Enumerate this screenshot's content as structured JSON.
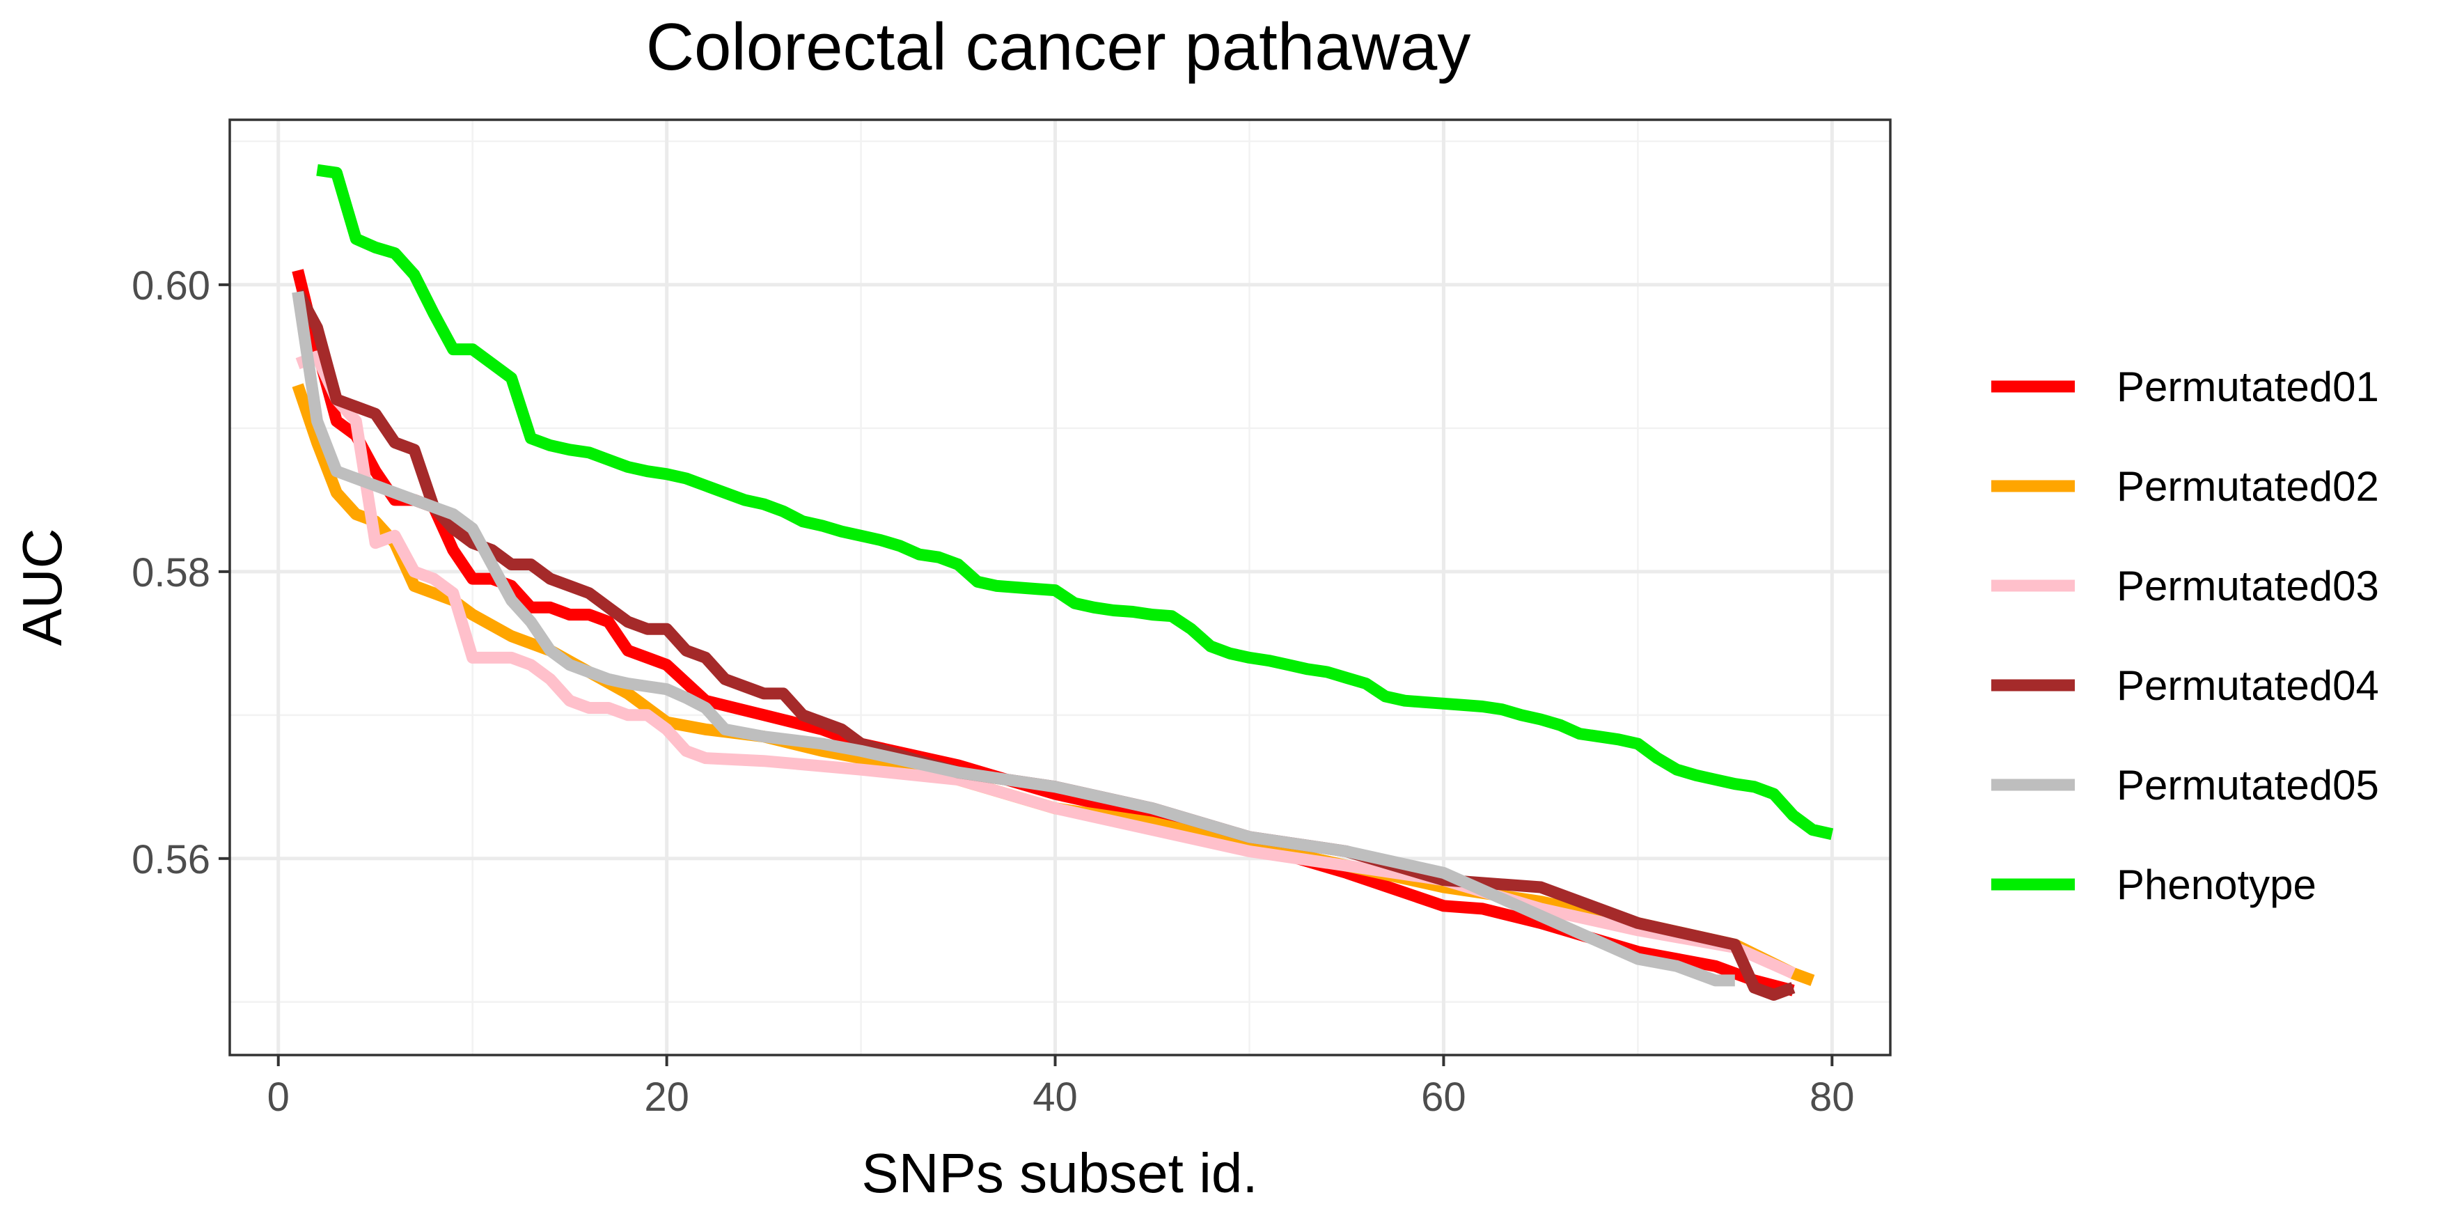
{
  "chart_data": {
    "type": "line",
    "title": "Colorectal cancer pathaway",
    "xlabel": "SNPs subset id.",
    "ylabel": "AUC",
    "xlim": [
      -2.5,
      83
    ],
    "ylim": [
      0.5463,
      0.6115
    ],
    "x_ticks": [
      0,
      20,
      40,
      60,
      80
    ],
    "x_tick_labels": [
      "0",
      "20",
      "40",
      "60",
      "80"
    ],
    "y_ticks": [
      0.56,
      0.58,
      0.6
    ],
    "y_tick_labels": [
      "0.56",
      "0.58",
      "0.60"
    ],
    "grid": true,
    "legend_position": "right",
    "series": [
      {
        "name": "Permutated01",
        "color": "#ff0000",
        "x": [
          1,
          2,
          3,
          4,
          5,
          6,
          7,
          8,
          9,
          10,
          11,
          12,
          13,
          14,
          15,
          16,
          17,
          18,
          19,
          20,
          22,
          25,
          28,
          30,
          35,
          40,
          45,
          50,
          55,
          60,
          62,
          65,
          70,
          74,
          76,
          78
        ],
        "y": [
          0.601,
          0.5955,
          0.5905,
          0.5895,
          0.587,
          0.585,
          0.585,
          0.5845,
          0.5815,
          0.5795,
          0.5795,
          0.579,
          0.5775,
          0.5775,
          0.577,
          0.577,
          0.5765,
          0.5745,
          0.574,
          0.5735,
          0.571,
          0.57,
          0.569,
          0.568,
          0.5665,
          0.5645,
          0.563,
          0.561,
          0.559,
          0.5567,
          0.5565,
          0.5555,
          0.5535,
          0.5525,
          0.5515,
          0.5508
        ]
      },
      {
        "name": "Permutated02",
        "color": "#ffa500",
        "x": [
          1,
          2,
          3,
          4,
          5,
          6,
          7,
          8,
          9,
          10,
          12,
          14,
          16,
          18,
          20,
          22,
          25,
          28,
          30,
          35,
          40,
          45,
          50,
          55,
          60,
          65,
          70,
          75,
          78,
          79
        ],
        "y": [
          0.593,
          0.589,
          0.5855,
          0.584,
          0.5835,
          0.582,
          0.579,
          0.5785,
          0.578,
          0.577,
          0.5755,
          0.5745,
          0.573,
          0.5715,
          0.5695,
          0.569,
          0.5685,
          0.5675,
          0.567,
          0.5655,
          0.5635,
          0.5625,
          0.561,
          0.5595,
          0.558,
          0.557,
          0.5555,
          0.554,
          0.552,
          0.5515
        ]
      },
      {
        "name": "Permutated03",
        "color": "#ffc0cb",
        "x": [
          1,
          2,
          3,
          4,
          5,
          6,
          7,
          8,
          9,
          10,
          11,
          12,
          13,
          14,
          15,
          16,
          17,
          18,
          19,
          20,
          21,
          22,
          25,
          30,
          35,
          40,
          45,
          50,
          55,
          60,
          65,
          70,
          75,
          78
        ],
        "y": [
          0.5945,
          0.595,
          0.592,
          0.5905,
          0.582,
          0.5825,
          0.58,
          0.5795,
          0.5785,
          0.574,
          0.574,
          0.574,
          0.5735,
          0.5725,
          0.571,
          0.5705,
          0.5705,
          0.57,
          0.57,
          0.569,
          0.5675,
          0.567,
          0.5668,
          0.5662,
          0.5655,
          0.5635,
          0.562,
          0.5605,
          0.5595,
          0.5585,
          0.5565,
          0.555,
          0.5538,
          0.552
        ]
      },
      {
        "name": "Permutated04",
        "color": "#a52a2a",
        "x": [
          1,
          2,
          3,
          4,
          5,
          6,
          7,
          8,
          9,
          10,
          11,
          12,
          13,
          14,
          15,
          16,
          17,
          18,
          19,
          20,
          21,
          22,
          23,
          24,
          25,
          26,
          27,
          28,
          29,
          30,
          35,
          40,
          45,
          50,
          55,
          60,
          65,
          70,
          75,
          76,
          77,
          78
        ],
        "y": [
          0.5995,
          0.597,
          0.592,
          0.5915,
          0.591,
          0.589,
          0.5885,
          0.5845,
          0.583,
          0.582,
          0.5815,
          0.5805,
          0.5805,
          0.5795,
          0.579,
          0.5785,
          0.5775,
          0.5765,
          0.576,
          0.576,
          0.5745,
          0.574,
          0.5725,
          0.572,
          0.5715,
          0.5715,
          0.57,
          0.5695,
          0.569,
          0.568,
          0.566,
          0.565,
          0.5635,
          0.5615,
          0.5605,
          0.5585,
          0.558,
          0.5555,
          0.554,
          0.551,
          0.5505,
          0.551
        ]
      },
      {
        "name": "Permutated05",
        "color": "#bebebe",
        "x": [
          1,
          2,
          3,
          4,
          5,
          6,
          7,
          8,
          9,
          10,
          11,
          12,
          13,
          14,
          15,
          16,
          17,
          18,
          19,
          20,
          21,
          22,
          23,
          25,
          28,
          30,
          35,
          40,
          45,
          50,
          55,
          60,
          65,
          70,
          72,
          74,
          75
        ],
        "y": [
          0.5995,
          0.5905,
          0.587,
          0.5865,
          0.586,
          0.5855,
          0.585,
          0.5845,
          0.584,
          0.583,
          0.5805,
          0.578,
          0.5765,
          0.5745,
          0.5735,
          0.573,
          0.5725,
          0.5722,
          0.572,
          0.5718,
          0.5712,
          0.5705,
          0.569,
          0.5685,
          0.568,
          0.5675,
          0.566,
          0.565,
          0.5635,
          0.5615,
          0.5605,
          0.559,
          0.556,
          0.553,
          0.5525,
          0.5515,
          0.5515
        ]
      },
      {
        "name": "Phenotype",
        "color": "#00ee00",
        "x": [
          2,
          3,
          4,
          5,
          6,
          7,
          8,
          9,
          10,
          11,
          12,
          13,
          14,
          15,
          16,
          17,
          18,
          19,
          20,
          21,
          22,
          23,
          24,
          25,
          26,
          27,
          28,
          29,
          30,
          31,
          32,
          33,
          34,
          35,
          36,
          37,
          38,
          39,
          40,
          41,
          42,
          43,
          44,
          45,
          46,
          47,
          48,
          49,
          50,
          51,
          52,
          53,
          54,
          55,
          56,
          57,
          58,
          59,
          60,
          61,
          62,
          63,
          64,
          65,
          66,
          67,
          68,
          69,
          70,
          71,
          72,
          73,
          74,
          75,
          76,
          77,
          78,
          79,
          80
        ],
        "y": [
          0.608,
          0.6078,
          0.6032,
          0.6026,
          0.6022,
          0.6007,
          0.598,
          0.5955,
          0.5955,
          0.5945,
          0.5935,
          0.5893,
          0.5888,
          0.5885,
          0.5883,
          0.5878,
          0.5873,
          0.587,
          0.5868,
          0.5865,
          0.586,
          0.5855,
          0.585,
          0.5847,
          0.5842,
          0.5835,
          0.5832,
          0.5828,
          0.5825,
          0.5822,
          0.5818,
          0.5812,
          0.581,
          0.5805,
          0.5793,
          0.579,
          0.5789,
          0.5788,
          0.5787,
          0.5778,
          0.5775,
          0.5773,
          0.5772,
          0.577,
          0.5769,
          0.576,
          0.5748,
          0.5743,
          0.574,
          0.5738,
          0.5735,
          0.5732,
          0.573,
          0.5726,
          0.5722,
          0.5713,
          0.571,
          0.5709,
          0.5708,
          0.5707,
          0.5706,
          0.5704,
          0.57,
          0.5697,
          0.5693,
          0.5687,
          0.5685,
          0.5683,
          0.568,
          0.567,
          0.5662,
          0.5658,
          0.5655,
          0.5652,
          0.565,
          0.5645,
          0.563,
          0.562,
          0.5617
        ]
      }
    ]
  }
}
